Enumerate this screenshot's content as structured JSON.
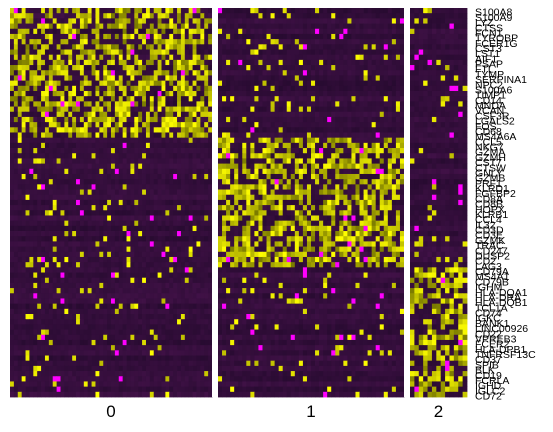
{
  "chart_data": {
    "type": "heatmap",
    "title": "",
    "xlabel": "",
    "ylabel": "",
    "clusters": [
      {
        "label": "0",
        "cells": 52
      },
      {
        "label": "1",
        "cells": 46
      },
      {
        "label": "2",
        "cells": 13
      }
    ],
    "genes": [
      "S100A8",
      "S100A9",
      "LYZ",
      "CTSS",
      "FCN1",
      "TYROBP",
      "FCER1G",
      "CST3",
      "LST1",
      "AIF1",
      "PSAP",
      "FTL",
      "TYMP",
      "SERPINA1",
      "NPC2",
      "S100A6",
      "TIMP1",
      "CD14",
      "MNDA",
      "VCAN",
      "CSF3R",
      "LGALS2",
      "FOS",
      "CD68",
      "MS4A6A",
      "CCL5",
      "NKG7",
      "GZMA",
      "GZMH",
      "CST7",
      "CTSW",
      "GNLY",
      "GZMB",
      "PRF1",
      "KLRD1",
      "FGFBP2",
      "CD8A",
      "CD8B",
      "HOPX",
      "KLRB1",
      "CCL4",
      "IL32",
      "CD3D",
      "CD3E",
      "GZMK",
      "TRAC",
      "CD247",
      "DUSP2",
      "CD2",
      "LAG3",
      "CD79A",
      "MS4A1",
      "CD79B",
      "IGHM",
      "HLA-DQA1",
      "HLA-DRA",
      "HLA-DQB1",
      "TCL1A",
      "CD74",
      "IGKC",
      "BANK1",
      "LINC00926",
      "CD22",
      "VPREB3",
      "FCER2",
      "HLA-DPB1",
      "TNFRSF13C",
      "CD37",
      "SPIB",
      "BLK",
      "CD19",
      "FCRLA",
      "IGHD",
      "IGLC2",
      "CD72"
    ],
    "gene_groups": [
      {
        "cluster": "0",
        "from": 0,
        "to": 24
      },
      {
        "cluster": "1",
        "from": 25,
        "to": 49
      },
      {
        "cluster": "2",
        "from": 50,
        "to": 74
      }
    ],
    "color_scale": [
      "#FF00FF",
      "#000000",
      "#FFFF00"
    ],
    "value_range": [
      -2.5,
      2.5
    ],
    "legend": "none"
  }
}
